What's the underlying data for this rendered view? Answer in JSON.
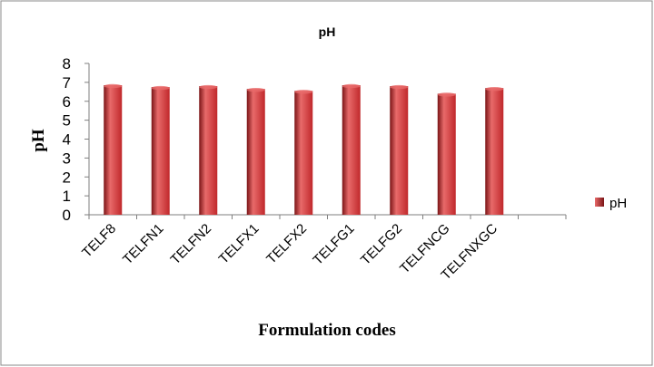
{
  "chart_data": {
    "type": "bar",
    "title": "pH",
    "xlabel": "Formulation codes",
    "ylabel": "pH",
    "categories": [
      "TELF8",
      "TELFN1",
      "TELFN2",
      "TELFX1",
      "TELFX2",
      "TELFG1",
      "TELFG2",
      "TELFNCG",
      "TELFNXGC"
    ],
    "series": [
      {
        "name": "pH",
        "values": [
          6.85,
          6.75,
          6.8,
          6.65,
          6.55,
          6.85,
          6.8,
          6.4,
          6.7
        ]
      }
    ],
    "ylim": [
      0,
      8
    ],
    "yticks": [
      0,
      1,
      2,
      3,
      4,
      5,
      6,
      7,
      8
    ],
    "grid": false,
    "legend_position": "right",
    "colors": {
      "bar": "#c0282b",
      "bar_dark": "#7a1416",
      "bar_light": "#e86a6a",
      "frame": "#888888"
    }
  }
}
